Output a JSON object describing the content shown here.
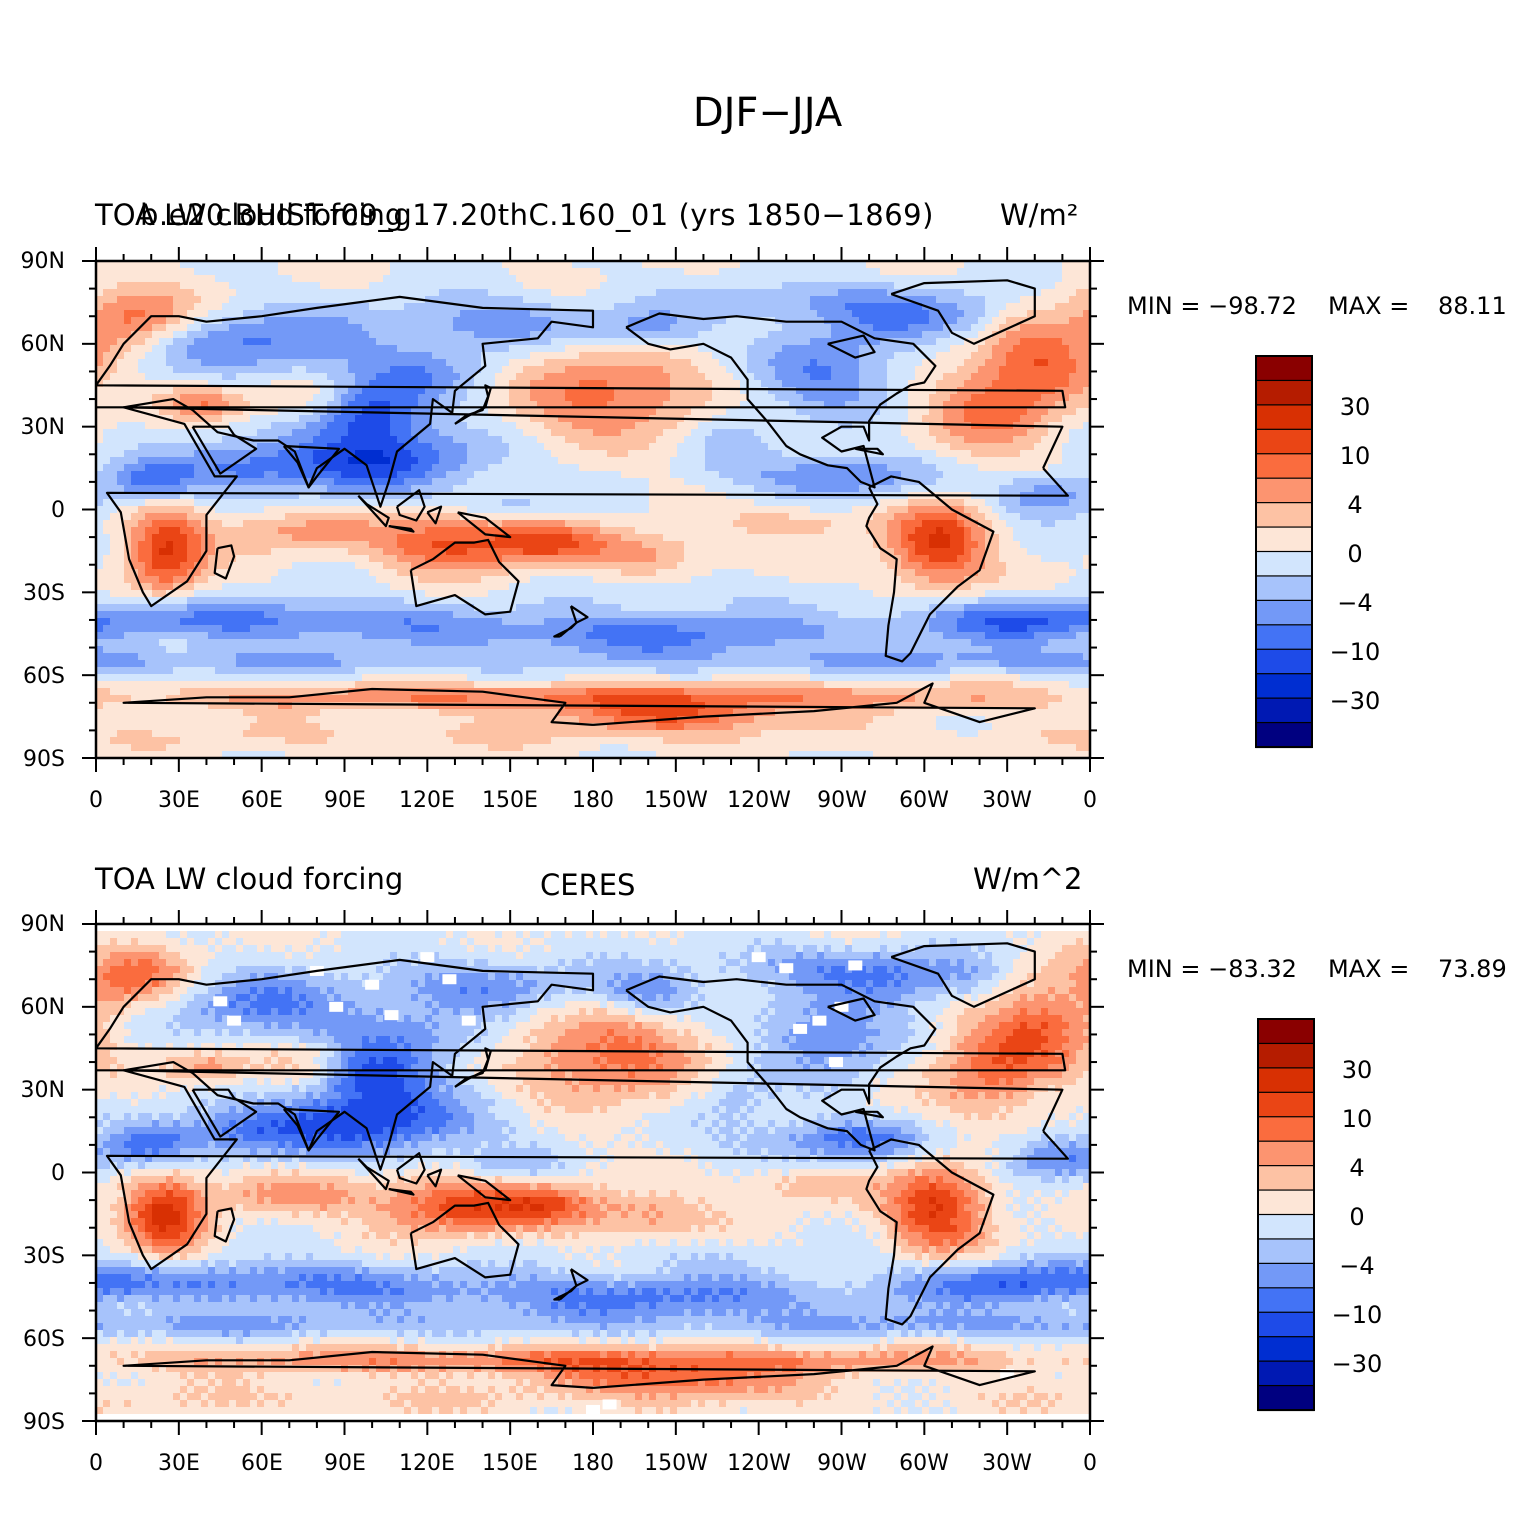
{
  "title": "DJF−JJA",
  "colors": [
    "#000080",
    "#0019b3",
    "#002ed1",
    "#1e4be8",
    "#4373f5",
    "#7399f7",
    "#a7c3fb",
    "#d2e5fd",
    "#fde6d7",
    "#fdc2a4",
    "#fc9470",
    "#fa6c3e",
    "#ea4515",
    "#d83003",
    "#b51c00",
    "#8a0000"
  ],
  "colorbar_labels": [
    "30",
    "10",
    "4",
    "0",
    "−4",
    "−10",
    "−30"
  ],
  "lat_labels": [
    "90N",
    "60N",
    "30N",
    "0",
    "30S",
    "60S",
    "90S"
  ],
  "lon_labels": [
    "0",
    "30E",
    "60E",
    "90E",
    "120E",
    "150E",
    "180",
    "150W",
    "120W",
    "90W",
    "60W",
    "30W",
    "0"
  ],
  "panels": [
    {
      "left_title": "TOA LW cloud forcing",
      "center_title": "b.e20.BHIST.f09_g17.20thC.160_01 (yrs 1850−1869)",
      "right_title": "W/m²",
      "min_label": "MIN = −98.72",
      "max_label": "MAX =",
      "max_value": "88.11"
    },
    {
      "left_title": "TOA LW cloud forcing",
      "center_title": "CERES",
      "right_title": "W/m^2",
      "min_label": "MIN = −83.32",
      "max_label": "MAX =",
      "max_value": "73.89"
    }
  ]
}
